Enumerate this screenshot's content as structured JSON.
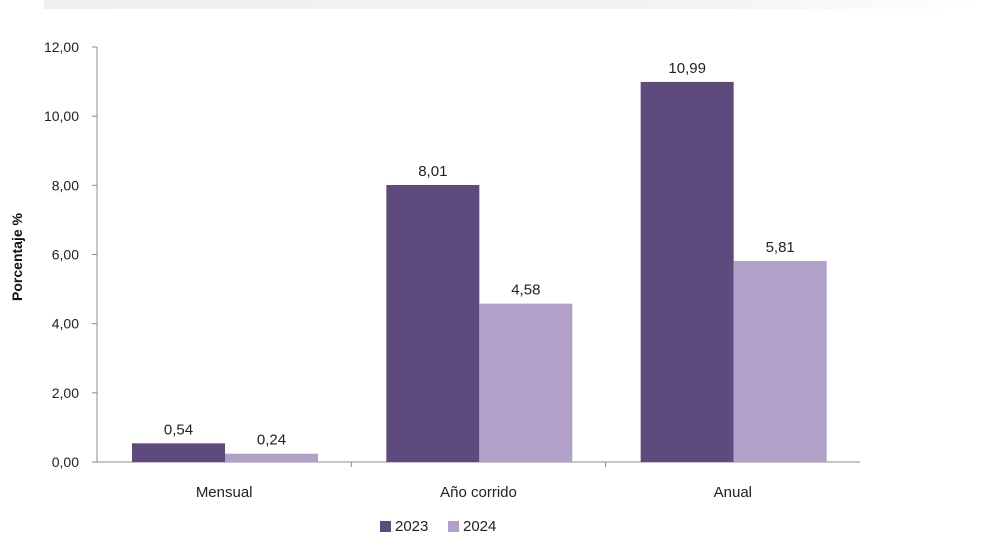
{
  "chart_data": {
    "type": "bar",
    "categories": [
      "Mensual",
      "Año corrido",
      "Anual"
    ],
    "series": [
      {
        "name": "2023",
        "values": [
          0.54,
          8.01,
          10.99
        ],
        "labels": [
          "0,54",
          "8,01",
          "10,99"
        ],
        "color": "#5e4a7c"
      },
      {
        "name": "2024",
        "values": [
          0.24,
          4.58,
          5.81
        ],
        "labels": [
          "0,24",
          "4,58",
          "5,81"
        ],
        "color": "#b1a1c8"
      }
    ],
    "title": "",
    "xlabel": "",
    "ylabel": "Porcentaje %",
    "ylim": [
      0,
      12
    ],
    "yticks": [
      0,
      2,
      4,
      6,
      8,
      10,
      12
    ],
    "ytick_labels": [
      "0,00",
      "2,00",
      "4,00",
      "6,00",
      "8,00",
      "10,00",
      "12,00"
    ],
    "grid": false,
    "legend_position": "bottom-center"
  }
}
